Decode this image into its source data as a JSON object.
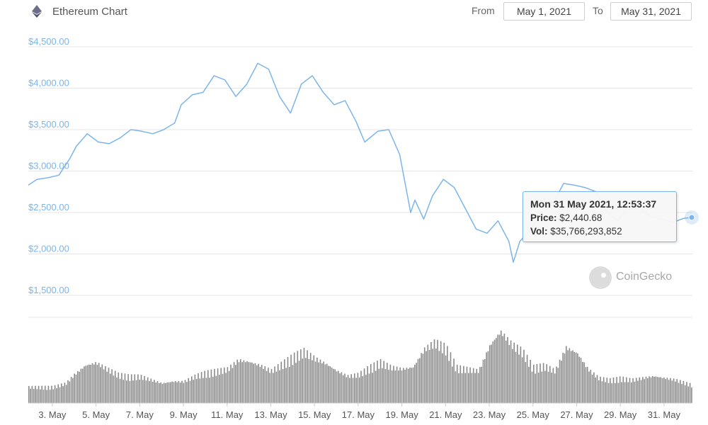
{
  "header": {
    "title": "Ethereum Chart",
    "from_label": "From",
    "from_value": "May 1, 2021",
    "to_label": "To",
    "to_value": "May 31, 2021"
  },
  "tooltip": {
    "datetime": "Mon 31 May 2021, 12:53:37",
    "price_label": "Price:",
    "price_value": "$2,440.68",
    "vol_label": "Vol:",
    "vol_value": "$35,766,293,852"
  },
  "watermark": {
    "text": "CoinGecko",
    "icon": "coingecko-logo-icon"
  },
  "colors": {
    "price_line": "#7cb5ec",
    "axis_text": "#7cb5ec",
    "grid": "#e6e6e6",
    "volume_bar": "#8a8a8a"
  },
  "chart_data": {
    "type": "line",
    "title": "Ethereum Chart",
    "ylabel": "",
    "ylim": [
      1500,
      4500
    ],
    "y_ticks": [
      "$4,500.00",
      "$4,000.00",
      "$3,500.00",
      "$3,000.00",
      "$2,500.00",
      "$2,000.00",
      "$1,500.00"
    ],
    "y_tick_values": [
      4500,
      4000,
      3500,
      3000,
      2500,
      2000,
      1500
    ],
    "x_ticks": [
      "3. May",
      "5. May",
      "7. May",
      "9. May",
      "11. May",
      "13. May",
      "15. May",
      "17. May",
      "19. May",
      "21. May",
      "23. May",
      "25. May",
      "27. May",
      "29. May",
      "31. May"
    ],
    "x_tick_days": [
      3,
      5,
      7,
      9,
      11,
      13,
      15,
      17,
      19,
      21,
      23,
      25,
      27,
      29,
      31
    ],
    "xlim_days": [
      1.9,
      32.3
    ],
    "grid": true,
    "price": {
      "day": [
        1.9,
        2.3,
        2.8,
        3.3,
        3.8,
        4.1,
        4.6,
        5.1,
        5.6,
        6.1,
        6.6,
        7.1,
        7.6,
        8.1,
        8.6,
        8.9,
        9.4,
        9.9,
        10.4,
        10.9,
        11.4,
        11.9,
        12.4,
        12.9,
        13.4,
        13.9,
        14.4,
        14.9,
        15.4,
        15.9,
        16.4,
        16.9,
        17.3,
        17.9,
        18.4,
        18.9,
        19.4,
        19.6,
        20.0,
        20.4,
        20.9,
        21.4,
        21.9,
        22.4,
        22.9,
        23.4,
        23.9,
        24.1,
        24.4,
        24.9,
        25.4,
        25.9,
        26.4,
        26.9,
        27.4,
        27.9,
        28.4,
        28.9,
        29.4,
        29.9,
        30.4,
        30.9,
        31.4,
        31.9,
        32.3
      ],
      "value": [
        2830,
        2900,
        2920,
        2950,
        3150,
        3300,
        3450,
        3350,
        3330,
        3400,
        3500,
        3480,
        3450,
        3500,
        3580,
        3800,
        3920,
        3950,
        4150,
        4100,
        3900,
        4050,
        4300,
        4230,
        3900,
        3700,
        4050,
        4150,
        3950,
        3800,
        3850,
        3600,
        3350,
        3480,
        3500,
        3200,
        2500,
        2650,
        2420,
        2700,
        2900,
        2800,
        2550,
        2300,
        2250,
        2400,
        2150,
        1900,
        2150,
        2300,
        2500,
        2600,
        2850,
        2830,
        2800,
        2750,
        2500,
        2400,
        2600,
        2550,
        2450,
        2420,
        2380,
        2430,
        2440.68
      ]
    },
    "volume": {
      "day": [
        1.9,
        2.5,
        3.0,
        3.6,
        4.0,
        4.5,
        5.0,
        5.5,
        6.0,
        6.5,
        7.0,
        7.5,
        8.0,
        8.5,
        9.0,
        9.5,
        10.0,
        10.5,
        11.0,
        11.5,
        12.0,
        12.5,
        13.0,
        13.5,
        14.0,
        14.5,
        15.0,
        15.5,
        16.0,
        16.5,
        17.0,
        17.5,
        18.0,
        18.5,
        19.0,
        19.5,
        20.0,
        20.5,
        21.0,
        21.5,
        22.0,
        22.5,
        23.0,
        23.5,
        24.0,
        24.5,
        25.0,
        25.5,
        26.0,
        26.5,
        27.0,
        27.5,
        28.0,
        28.5,
        29.0,
        29.5,
        30.0,
        30.5,
        31.0,
        31.5,
        32.3
      ],
      "relative": [
        0.18,
        0.18,
        0.18,
        0.22,
        0.32,
        0.42,
        0.45,
        0.38,
        0.32,
        0.3,
        0.3,
        0.26,
        0.22,
        0.24,
        0.24,
        0.3,
        0.34,
        0.36,
        0.38,
        0.48,
        0.46,
        0.42,
        0.36,
        0.44,
        0.52,
        0.58,
        0.5,
        0.44,
        0.36,
        0.3,
        0.32,
        0.4,
        0.46,
        0.4,
        0.38,
        0.4,
        0.6,
        0.68,
        0.62,
        0.4,
        0.38,
        0.36,
        0.64,
        0.8,
        0.66,
        0.58,
        0.4,
        0.42,
        0.36,
        0.62,
        0.56,
        0.38,
        0.28,
        0.26,
        0.28,
        0.26,
        0.28,
        0.3,
        0.28,
        0.26,
        0.2
      ]
    },
    "tooltip_point": {
      "day": 32.3,
      "value": 2440.68
    }
  }
}
